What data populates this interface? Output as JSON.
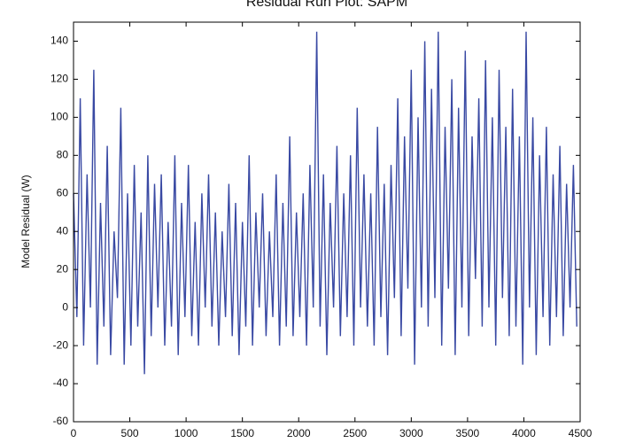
{
  "chart_data": {
    "type": "line",
    "title": "Residual Run Plot: SAPM",
    "y_label": "Model Residual (W)",
    "color": "#3949a3",
    "x": [
      0,
      30,
      60,
      90,
      120,
      150,
      180,
      210,
      240,
      270,
      300,
      330,
      360,
      390,
      420,
      450,
      480,
      510,
      540,
      570,
      600,
      630,
      660,
      690,
      720,
      750,
      780,
      810,
      840,
      870,
      900,
      930,
      960,
      990,
      1020,
      1050,
      1080,
      1110,
      1140,
      1170,
      1200,
      1230,
      1260,
      1290,
      1320,
      1350,
      1380,
      1410,
      1440,
      1470,
      1500,
      1530,
      1560,
      1590,
      1620,
      1650,
      1680,
      1710,
      1740,
      1770,
      1800,
      1830,
      1860,
      1890,
      1920,
      1950,
      1980,
      2010,
      2040,
      2070,
      2100,
      2130,
      2160,
      2190,
      2220,
      2250,
      2280,
      2310,
      2340,
      2370,
      2400,
      2430,
      2460,
      2490,
      2520,
      2550,
      2580,
      2610,
      2640,
      2670,
      2700,
      2730,
      2760,
      2790,
      2820,
      2850,
      2880,
      2910,
      2940,
      2970,
      3000,
      3030,
      3060,
      3090,
      3120,
      3150,
      3180,
      3210,
      3240,
      3270,
      3300,
      3330,
      3360,
      3390,
      3420,
      3450,
      3480,
      3510,
      3540,
      3570,
      3600,
      3630,
      3660,
      3690,
      3720,
      3750,
      3780,
      3810,
      3840,
      3870,
      3900,
      3930,
      3960,
      3990,
      4020,
      4050,
      4080,
      4110,
      4140,
      4170,
      4200,
      4230,
      4260,
      4290,
      4320,
      4350,
      4380,
      4410,
      4440,
      4470
    ],
    "values": [
      60,
      -5,
      110,
      -20,
      70,
      0,
      125,
      -30,
      55,
      -10,
      85,
      -25,
      40,
      5,
      105,
      -30,
      60,
      -20,
      75,
      -10,
      50,
      -35,
      80,
      -15,
      65,
      0,
      70,
      -20,
      45,
      -10,
      80,
      -25,
      55,
      -5,
      75,
      -15,
      45,
      -20,
      60,
      0,
      70,
      -10,
      50,
      -20,
      40,
      -5,
      65,
      -15,
      55,
      -25,
      45,
      -10,
      80,
      -20,
      50,
      0,
      60,
      -15,
      40,
      -5,
      70,
      -20,
      55,
      -10,
      90,
      -15,
      50,
      -5,
      60,
      -20,
      75,
      0,
      145,
      -10,
      70,
      -25,
      55,
      0,
      85,
      -15,
      60,
      -5,
      80,
      -20,
      105,
      0,
      70,
      -10,
      60,
      -20,
      95,
      -5,
      65,
      -25,
      75,
      5,
      110,
      -15,
      90,
      10,
      125,
      -30,
      100,
      0,
      140,
      -10,
      115,
      5,
      145,
      -20,
      95,
      10,
      120,
      -25,
      105,
      0,
      135,
      -15,
      90,
      15,
      110,
      -10,
      130,
      0,
      100,
      -20,
      125,
      5,
      95,
      -15,
      115,
      -10,
      90,
      -30,
      145,
      0,
      100,
      -25,
      80,
      -5,
      95,
      -20,
      70,
      -5,
      85,
      -15,
      65,
      0,
      75,
      -10
    ],
    "xlim": [
      0,
      4500
    ],
    "xticks": [
      0,
      500,
      1000,
      1500,
      2000,
      2500,
      3000,
      3500,
      4000,
      4500
    ],
    "ylim": [
      -60,
      150
    ],
    "yticks": [
      -60,
      -40,
      -20,
      0,
      20,
      40,
      60,
      80,
      100,
      120,
      140
    ]
  }
}
